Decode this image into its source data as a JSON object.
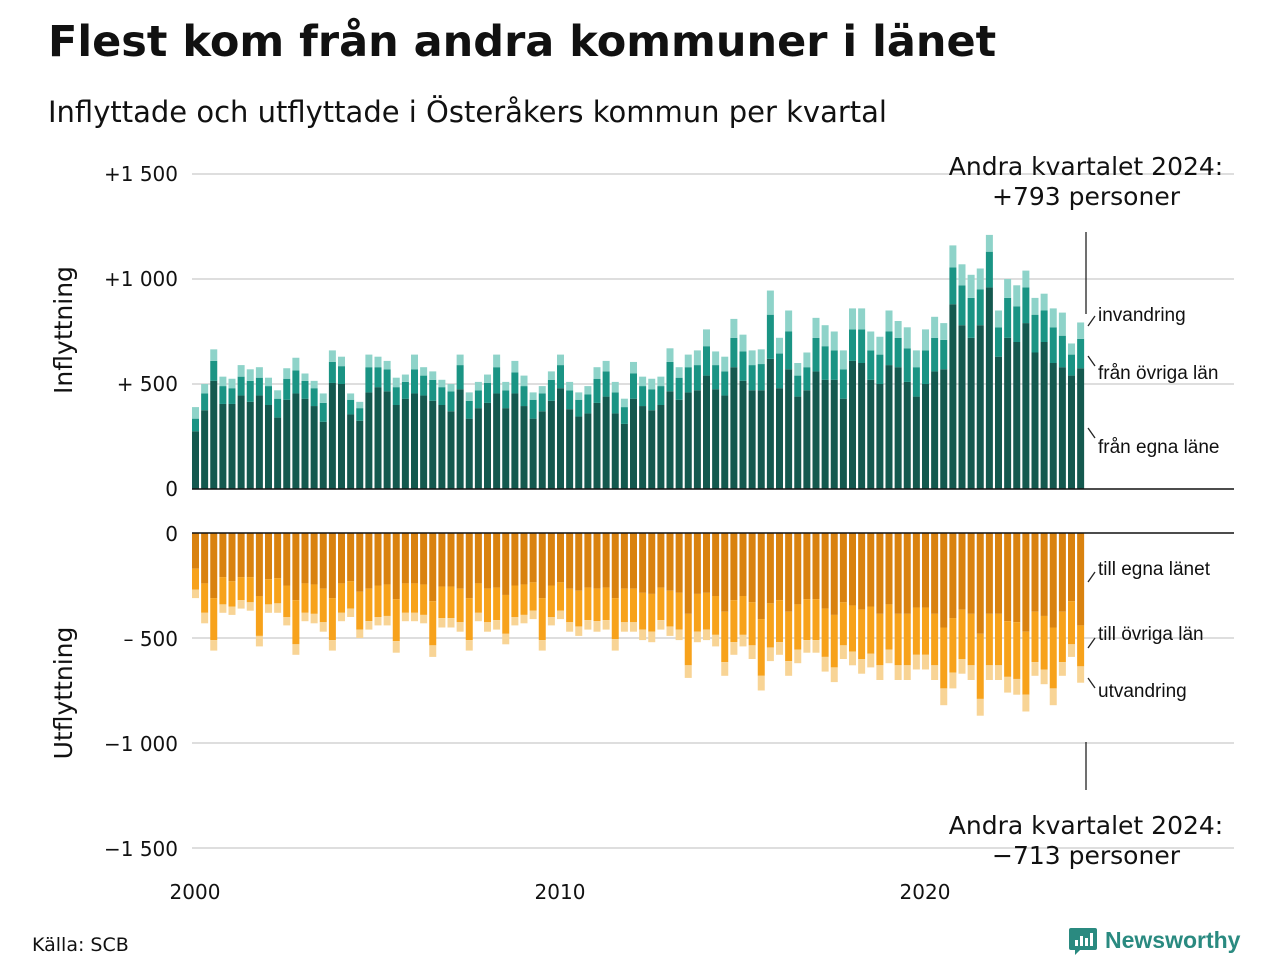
{
  "title": "Flest kom från andra kommuner i länet",
  "subtitle": "Inflyttade och utflyttade i Österåkers kommun per kvartal",
  "source": "Källa: SCB",
  "brand": "Newsworthy",
  "chart_data": {
    "type": "bar",
    "stacked": true,
    "x_ticks": [
      "2000",
      "2010",
      "2020"
    ],
    "x_range": [
      "2000-Q1",
      "2024-Q2"
    ],
    "x": [
      "2000-Q1",
      "2000-Q2",
      "2000-Q3",
      "2000-Q4",
      "2001-Q1",
      "2001-Q2",
      "2001-Q3",
      "2001-Q4",
      "2002-Q1",
      "2002-Q2",
      "2002-Q3",
      "2002-Q4",
      "2003-Q1",
      "2003-Q2",
      "2003-Q3",
      "2003-Q4",
      "2004-Q1",
      "2004-Q2",
      "2004-Q3",
      "2004-Q4",
      "2005-Q1",
      "2005-Q2",
      "2005-Q3",
      "2005-Q4",
      "2006-Q1",
      "2006-Q2",
      "2006-Q3",
      "2006-Q4",
      "2007-Q1",
      "2007-Q2",
      "2007-Q3",
      "2007-Q4",
      "2008-Q1",
      "2008-Q2",
      "2008-Q3",
      "2008-Q4",
      "2009-Q1",
      "2009-Q2",
      "2009-Q3",
      "2009-Q4",
      "2010-Q1",
      "2010-Q2",
      "2010-Q3",
      "2010-Q4",
      "2011-Q1",
      "2011-Q2",
      "2011-Q3",
      "2011-Q4",
      "2012-Q1",
      "2012-Q2",
      "2012-Q3",
      "2012-Q4",
      "2013-Q1",
      "2013-Q2",
      "2013-Q3",
      "2013-Q4",
      "2014-Q1",
      "2014-Q2",
      "2014-Q3",
      "2014-Q4",
      "2015-Q1",
      "2015-Q2",
      "2015-Q3",
      "2015-Q4",
      "2016-Q1",
      "2016-Q2",
      "2016-Q3",
      "2016-Q4",
      "2017-Q1",
      "2017-Q2",
      "2017-Q3",
      "2017-Q4",
      "2018-Q1",
      "2018-Q2",
      "2018-Q3",
      "2018-Q4",
      "2019-Q1",
      "2019-Q2",
      "2019-Q3",
      "2019-Q4",
      "2020-Q1",
      "2020-Q2",
      "2020-Q3",
      "2020-Q4",
      "2021-Q1",
      "2021-Q2",
      "2021-Q3",
      "2021-Q4",
      "2022-Q1",
      "2022-Q2",
      "2022-Q3",
      "2022-Q4",
      "2023-Q1",
      "2023-Q2",
      "2023-Q3",
      "2023-Q4",
      "2024-Q1",
      "2024-Q2"
    ],
    "inflow": {
      "axis_title": "Inflyttning",
      "y_ticks": [
        {
          "value": 1500,
          "label": "+1 500"
        },
        {
          "value": 1000,
          "label": "+1 000"
        },
        {
          "value": 500,
          "label": "+  500"
        },
        {
          "value": 0,
          "label": "0"
        }
      ],
      "ylim": [
        0,
        1500
      ],
      "series": [
        {
          "name": "från egna läne",
          "color": "#14594f",
          "values": [
            275,
            375,
            515,
            405,
            405,
            445,
            415,
            445,
            400,
            340,
            425,
            455,
            430,
            395,
            320,
            505,
            500,
            355,
            325,
            460,
            485,
            465,
            400,
            430,
            455,
            445,
            420,
            400,
            370,
            475,
            335,
            385,
            410,
            455,
            385,
            455,
            395,
            335,
            370,
            420,
            480,
            380,
            345,
            360,
            410,
            440,
            360,
            310,
            430,
            395,
            375,
            400,
            465,
            425,
            460,
            470,
            540,
            475,
            445,
            580,
            515,
            470,
            470,
            620,
            480,
            570,
            440,
            470,
            560,
            520,
            520,
            430,
            610,
            600,
            520,
            500,
            590,
            580,
            510,
            440,
            500,
            560,
            570,
            880,
            780,
            720,
            780,
            960,
            630,
            720,
            700,
            790,
            650,
            700,
            600,
            580,
            540,
            575
          ]
        },
        {
          "name": "från övriga län",
          "color": "#1a9484",
          "values": [
            60,
            80,
            95,
            85,
            75,
            90,
            100,
            85,
            90,
            90,
            100,
            110,
            85,
            85,
            90,
            100,
            85,
            70,
            60,
            120,
            95,
            105,
            85,
            80,
            115,
            95,
            100,
            85,
            95,
            115,
            85,
            85,
            95,
            125,
            85,
            100,
            95,
            90,
            85,
            100,
            110,
            90,
            80,
            90,
            115,
            120,
            100,
            80,
            120,
            95,
            100,
            90,
            140,
            105,
            120,
            120,
            140,
            115,
            115,
            140,
            140,
            120,
            125,
            210,
            165,
            180,
            100,
            110,
            160,
            160,
            140,
            140,
            150,
            160,
            140,
            140,
            160,
            140,
            160,
            140,
            160,
            160,
            140,
            175,
            190,
            190,
            170,
            170,
            140,
            190,
            170,
            170,
            180,
            150,
            170,
            150,
            100,
            140
          ]
        },
        {
          "name": "invandring",
          "color": "#8ed3c9",
          "values": [
            55,
            45,
            55,
            45,
            45,
            55,
            55,
            50,
            40,
            40,
            50,
            60,
            35,
            35,
            45,
            55,
            45,
            30,
            30,
            60,
            50,
            40,
            45,
            35,
            70,
            40,
            40,
            35,
            35,
            50,
            40,
            40,
            40,
            60,
            40,
            55,
            50,
            35,
            35,
            40,
            50,
            40,
            35,
            40,
            55,
            50,
            50,
            40,
            55,
            45,
            50,
            45,
            65,
            50,
            60,
            70,
            80,
            65,
            70,
            90,
            80,
            70,
            70,
            115,
            75,
            100,
            60,
            70,
            95,
            100,
            90,
            90,
            100,
            100,
            90,
            85,
            100,
            80,
            100,
            80,
            100,
            100,
            80,
            105,
            100,
            110,
            100,
            80,
            80,
            90,
            100,
            80,
            80,
            80,
            90,
            110,
            53,
            78
          ]
        }
      ],
      "annotation": {
        "line1": "Andra kvartalet 2024:",
        "line2": "+793 personer"
      }
    },
    "outflow": {
      "axis_title": "Utflyttning",
      "y_ticks": [
        {
          "value": 0,
          "label": "0"
        },
        {
          "value": -500,
          "label": "–  500"
        },
        {
          "value": -1000,
          "label": "−1 000"
        },
        {
          "value": -1500,
          "label": "−1 500"
        }
      ],
      "ylim": [
        -1500,
        0
      ],
      "series": [
        {
          "name": "till egna länet",
          "color": "#d9820f",
          "values": [
            -170,
            -240,
            -310,
            -210,
            -230,
            -210,
            -210,
            -300,
            -220,
            -215,
            -250,
            -320,
            -240,
            -245,
            -265,
            -310,
            -240,
            -230,
            -280,
            -265,
            -250,
            -245,
            -315,
            -240,
            -240,
            -245,
            -325,
            -255,
            -255,
            -265,
            -310,
            -240,
            -265,
            -260,
            -295,
            -250,
            -245,
            -235,
            -310,
            -250,
            -235,
            -265,
            -275,
            -260,
            -265,
            -260,
            -310,
            -265,
            -265,
            -285,
            -290,
            -260,
            -275,
            -285,
            -385,
            -290,
            -285,
            -300,
            -375,
            -320,
            -300,
            -330,
            -410,
            -335,
            -320,
            -375,
            -340,
            -315,
            -315,
            -360,
            -390,
            -330,
            -345,
            -365,
            -350,
            -385,
            -340,
            -385,
            -385,
            -355,
            -355,
            -385,
            -450,
            -405,
            -365,
            -385,
            -480,
            -385,
            -385,
            -420,
            -425,
            -470,
            -375,
            -395,
            -450,
            -375,
            -325,
            -440
          ]
        },
        {
          "name": "till övriga län",
          "color": "#f7a21b",
          "values": [
            -100,
            -140,
            -200,
            -130,
            -120,
            -110,
            -120,
            -190,
            -120,
            -120,
            -150,
            -210,
            -140,
            -140,
            -160,
            -200,
            -140,
            -130,
            -180,
            -155,
            -150,
            -150,
            -200,
            -140,
            -140,
            -145,
            -210,
            -150,
            -150,
            -160,
            -200,
            -140,
            -160,
            -155,
            -185,
            -150,
            -145,
            -135,
            -200,
            -150,
            -135,
            -160,
            -170,
            -155,
            -155,
            -155,
            -195,
            -160,
            -160,
            -175,
            -180,
            -155,
            -170,
            -175,
            -245,
            -180,
            -175,
            -185,
            -240,
            -200,
            -185,
            -205,
            -270,
            -210,
            -200,
            -235,
            -215,
            -195,
            -195,
            -230,
            -250,
            -205,
            -220,
            -235,
            -225,
            -245,
            -215,
            -245,
            -245,
            -225,
            -225,
            -245,
            -290,
            -260,
            -235,
            -245,
            -310,
            -245,
            -245,
            -265,
            -270,
            -300,
            -240,
            -255,
            -290,
            -240,
            -205,
            -195
          ]
        },
        {
          "name": "utvandring",
          "color": "#f8d495",
          "values": [
            -40,
            -50,
            -50,
            -40,
            -40,
            -40,
            -40,
            -50,
            -40,
            -45,
            -40,
            -50,
            -40,
            -45,
            -45,
            -50,
            -40,
            -40,
            -40,
            -40,
            -40,
            -45,
            -55,
            -40,
            -40,
            -40,
            -55,
            -45,
            -45,
            -45,
            -50,
            -40,
            -45,
            -45,
            -50,
            -40,
            -40,
            -40,
            -50,
            -40,
            -40,
            -45,
            -45,
            -45,
            -50,
            -45,
            -55,
            -45,
            -45,
            -50,
            -50,
            -45,
            -45,
            -50,
            -60,
            -50,
            -50,
            -55,
            -65,
            -60,
            -55,
            -65,
            -70,
            -65,
            -60,
            -70,
            -65,
            -60,
            -60,
            -70,
            -70,
            -65,
            -65,
            -70,
            -65,
            -70,
            -65,
            -70,
            -70,
            -70,
            -70,
            -70,
            -80,
            -75,
            -70,
            -70,
            -80,
            -70,
            -70,
            -75,
            -75,
            -80,
            -65,
            -70,
            -80,
            -65,
            -60,
            -78
          ]
        }
      ],
      "annotation": {
        "line1": "Andra kvartalet 2024:",
        "line2": "−713 personer"
      }
    }
  }
}
